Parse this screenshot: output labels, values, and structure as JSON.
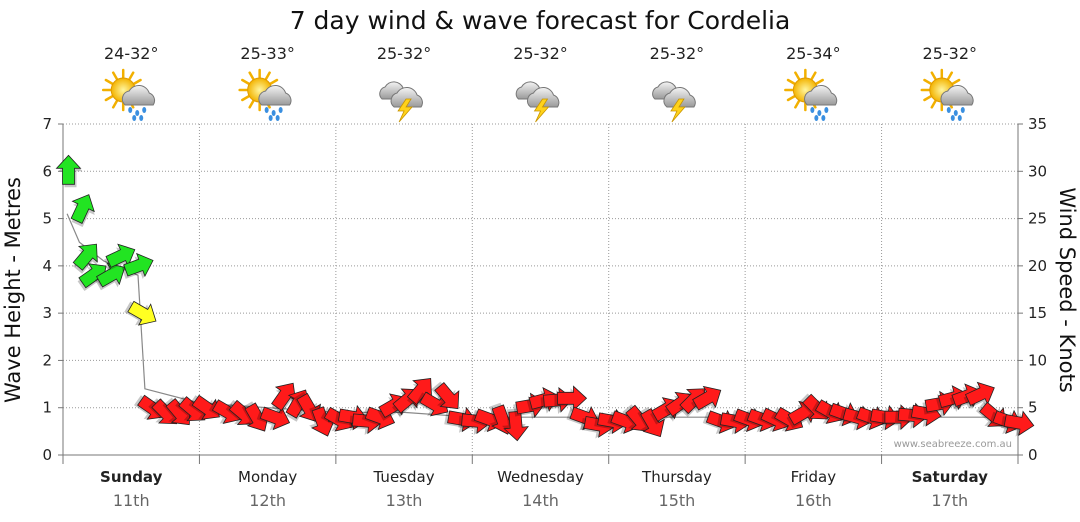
{
  "chart_data": {
    "type": "line",
    "title": "7 day wind & wave forecast for Cordelia",
    "ylabel_left": "Wave Height - Metres",
    "ylabel_right": "Wind Speed - Knots",
    "ylim_left": [
      0,
      7
    ],
    "ylim_right": [
      0,
      35
    ],
    "left_ticks": [
      "0",
      "1",
      "2",
      "3",
      "4",
      "5",
      "6",
      "7"
    ],
    "right_ticks": [
      "0",
      "5",
      "10",
      "15",
      "20",
      "25",
      "30",
      "35"
    ],
    "grid": true,
    "days": [
      {
        "name": "Sunday",
        "date": "11th",
        "bold": true,
        "temp": "24-32°",
        "weather": "sun-cloud-rain-icon"
      },
      {
        "name": "Monday",
        "date": "12th",
        "bold": false,
        "temp": "25-33°",
        "weather": "sun-cloud-rain-icon"
      },
      {
        "name": "Tuesday",
        "date": "13th",
        "bold": false,
        "temp": "25-32°",
        "weather": "storm-icon"
      },
      {
        "name": "Wednesday",
        "date": "14th",
        "bold": false,
        "temp": "25-32°",
        "weather": "storm-icon"
      },
      {
        "name": "Thursday",
        "date": "15th",
        "bold": false,
        "temp": "25-32°",
        "weather": "storm-icon"
      },
      {
        "name": "Friday",
        "date": "16th",
        "bold": false,
        "temp": "25-34°",
        "weather": "sun-cloud-rain-icon"
      },
      {
        "name": "Saturday",
        "date": "17th",
        "bold": true,
        "temp": "25-32°",
        "weather": "sun-cloud-rain-icon"
      }
    ],
    "wave_series": {
      "name": "Wave Height (m)",
      "x_days": [
        0.03,
        0.12,
        0.3,
        0.55,
        0.6,
        1.0,
        1.5,
        2.0,
        2.5,
        3.0,
        3.5,
        4.0,
        4.5,
        5.0,
        5.5,
        6.0,
        6.5,
        7.0
      ],
      "values": [
        5.1,
        4.5,
        4.1,
        3.8,
        1.4,
        1.1,
        1.0,
        0.9,
        0.9,
        0.8,
        0.8,
        0.8,
        0.8,
        0.8,
        0.8,
        0.8,
        0.8,
        0.8
      ]
    },
    "wind_series": {
      "name": "Wind (knots, direction deg toward)",
      "points": [
        [
          0.04,
          30,
          0
        ],
        [
          0.14,
          26,
          25
        ],
        [
          0.17,
          21,
          40
        ],
        [
          0.22,
          19,
          55
        ],
        [
          0.35,
          19,
          60
        ],
        [
          0.42,
          21,
          65
        ],
        [
          0.55,
          20,
          70
        ],
        [
          0.58,
          15,
          120
        ],
        [
          0.65,
          5,
          125
        ],
        [
          0.75,
          4.5,
          135
        ],
        [
          0.85,
          4.5,
          140
        ],
        [
          0.95,
          4.8,
          130
        ],
        [
          1.05,
          5,
          125
        ],
        [
          1.2,
          4.6,
          120
        ],
        [
          1.32,
          4.4,
          130
        ],
        [
          1.42,
          4.0,
          150
        ],
        [
          1.55,
          4.0,
          110
        ],
        [
          1.62,
          6.2,
          35
        ],
        [
          1.72,
          5.4,
          30
        ],
        [
          1.8,
          5.0,
          150
        ],
        [
          1.9,
          3.6,
          160
        ],
        [
          2.02,
          3.8,
          120
        ],
        [
          2.12,
          4.0,
          100
        ],
        [
          2.22,
          3.6,
          95
        ],
        [
          2.32,
          4.0,
          110
        ],
        [
          2.42,
          5.2,
          60
        ],
        [
          2.52,
          5.8,
          50
        ],
        [
          2.62,
          6.8,
          40
        ],
        [
          2.72,
          5.4,
          120
        ],
        [
          2.82,
          6.2,
          140
        ],
        [
          2.92,
          3.8,
          100
        ],
        [
          3.02,
          3.6,
          95
        ],
        [
          3.12,
          3.8,
          110
        ],
        [
          3.22,
          3.8,
          160
        ],
        [
          3.32,
          3.2,
          175
        ],
        [
          3.42,
          5.2,
          80
        ],
        [
          3.52,
          5.8,
          75
        ],
        [
          3.62,
          5.8,
          85
        ],
        [
          3.72,
          6.0,
          90
        ],
        [
          3.82,
          4.0,
          110
        ],
        [
          3.92,
          3.2,
          100
        ],
        [
          4.02,
          3.6,
          100
        ],
        [
          4.12,
          3.6,
          110
        ],
        [
          4.22,
          3.8,
          140
        ],
        [
          4.32,
          3.4,
          150
        ],
        [
          4.42,
          4.8,
          60
        ],
        [
          4.52,
          5.4,
          55
        ],
        [
          4.62,
          5.8,
          45
        ],
        [
          4.72,
          6.0,
          60
        ],
        [
          4.82,
          3.6,
          110
        ],
        [
          4.92,
          3.6,
          100
        ],
        [
          5.02,
          3.8,
          110
        ],
        [
          5.12,
          3.8,
          110
        ],
        [
          5.22,
          3.8,
          115
        ],
        [
          5.32,
          3.8,
          120
        ],
        [
          5.42,
          4.4,
          60
        ],
        [
          5.52,
          5.0,
          135
        ],
        [
          5.62,
          4.6,
          120
        ],
        [
          5.72,
          4.4,
          110
        ],
        [
          5.82,
          4.0,
          105
        ],
        [
          5.92,
          4.0,
          110
        ],
        [
          6.02,
          4.0,
          100
        ],
        [
          6.12,
          4.0,
          90
        ],
        [
          6.22,
          4.2,
          95
        ],
        [
          6.32,
          4.4,
          100
        ],
        [
          6.42,
          5.4,
          80
        ],
        [
          6.52,
          6.0,
          75
        ],
        [
          6.62,
          6.2,
          70
        ],
        [
          6.72,
          6.4,
          65
        ],
        [
          6.82,
          4.2,
          130
        ],
        [
          6.92,
          3.6,
          110
        ],
        [
          7.0,
          3.4,
          100
        ]
      ]
    },
    "watermark": "www.seabreeze.com.au"
  }
}
